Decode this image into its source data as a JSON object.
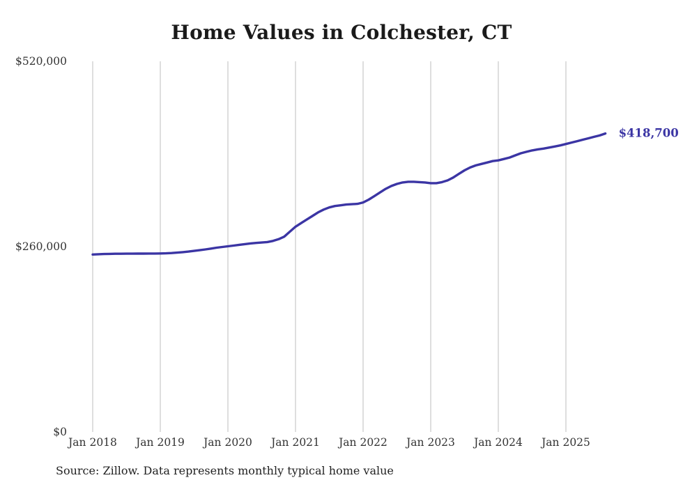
{
  "chart_data": {
    "type": "line",
    "title": "Home Values in Colchester, CT",
    "source_note": "Source: Zillow. Data represents monthly typical home value",
    "series_name": "Monthly typical home value",
    "frequency": "monthly",
    "start_month": "2018-01",
    "end_month": "2025-08",
    "x_tick_labels": [
      "Jan 2018",
      "Jan 2019",
      "Jan 2020",
      "Jan 2021",
      "Jan 2022",
      "Jan 2023",
      "Jan 2024",
      "Jan 2025"
    ],
    "y_ticks": [
      0,
      260000,
      520000
    ],
    "y_tick_labels": [
      "$0",
      "$260,000",
      "$520,000"
    ],
    "ylim": [
      0,
      520000
    ],
    "end_label": "$418,700",
    "line_color": "#3b35a4",
    "grid_color": "#cccccc",
    "label_color": "#333333",
    "values": [
      249000,
      249300,
      249600,
      249800,
      250000,
      250000,
      250100,
      250100,
      250200,
      250200,
      250300,
      250300,
      250400,
      250600,
      251000,
      251600,
      252300,
      253100,
      254000,
      255000,
      256100,
      257300,
      258500,
      259500,
      260500,
      261500,
      262500,
      263500,
      264500,
      265200,
      265800,
      266500,
      268000,
      270500,
      274000,
      281000,
      288000,
      293000,
      298000,
      303000,
      308000,
      312000,
      315000,
      317000,
      318000,
      319000,
      319500,
      320000,
      322000,
      326000,
      331000,
      336000,
      341000,
      345000,
      348000,
      350000,
      351000,
      351000,
      350500,
      350000,
      349000,
      349000,
      350500,
      353000,
      357000,
      362000,
      367000,
      371000,
      374000,
      376000,
      378000,
      380000,
      381000,
      383000,
      385000,
      388000,
      391000,
      393000,
      395000,
      396500,
      397500,
      399000,
      400500,
      402000,
      404000,
      406000,
      408000,
      410000,
      412000,
      414000,
      416000,
      418700
    ]
  }
}
